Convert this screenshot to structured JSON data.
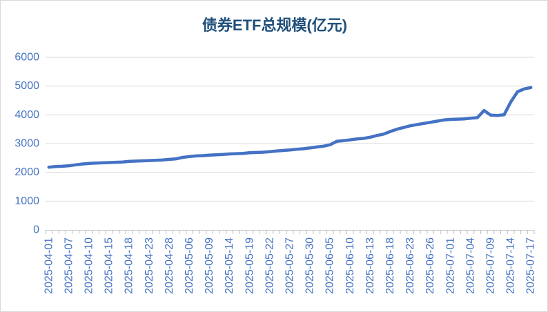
{
  "window": {
    "background": "#FFFFFF",
    "border_color": "#D9D9D9"
  },
  "chart_data": {
    "type": "line",
    "title": "债券ETF总规模(亿元)",
    "xlabel": "",
    "ylabel": "",
    "ylim": [
      0,
      6000
    ],
    "y_ticks": [
      0,
      1000,
      2000,
      3000,
      4000,
      5000,
      6000
    ],
    "grid": true,
    "legend": false,
    "x_label_every": 3,
    "x_tick_labels_shown": [
      "2025-04-01",
      "2025-04-07",
      "2025-04-10",
      "2025-04-15",
      "2025-04-18",
      "2025-04-23",
      "2025-04-28",
      "2025-05-06",
      "2025-05-09",
      "2025-05-14",
      "2025-05-19",
      "2025-05-22",
      "2025-05-27",
      "2025-05-30",
      "2025-06-05",
      "2025-06-10",
      "2025-06-13",
      "2025-06-18",
      "2025-06-23",
      "2025-06-26",
      "2025-07-01",
      "2025-07-04",
      "2025-07-09",
      "2025-07-14",
      "2025-07-17"
    ],
    "x": [
      "2025-04-01",
      "2025-04-02",
      "2025-04-03",
      "2025-04-07",
      "2025-04-08",
      "2025-04-09",
      "2025-04-10",
      "2025-04-11",
      "2025-04-14",
      "2025-04-15",
      "2025-04-16",
      "2025-04-17",
      "2025-04-18",
      "2025-04-21",
      "2025-04-22",
      "2025-04-23",
      "2025-04-24",
      "2025-04-25",
      "2025-04-28",
      "2025-04-29",
      "2025-04-30",
      "2025-05-06",
      "2025-05-07",
      "2025-05-08",
      "2025-05-09",
      "2025-05-12",
      "2025-05-13",
      "2025-05-14",
      "2025-05-15",
      "2025-05-16",
      "2025-05-19",
      "2025-05-20",
      "2025-05-21",
      "2025-05-22",
      "2025-05-23",
      "2025-05-26",
      "2025-05-27",
      "2025-05-28",
      "2025-05-29",
      "2025-05-30",
      "2025-06-03",
      "2025-06-04",
      "2025-06-05",
      "2025-06-06",
      "2025-06-09",
      "2025-06-10",
      "2025-06-11",
      "2025-06-12",
      "2025-06-13",
      "2025-06-16",
      "2025-06-17",
      "2025-06-18",
      "2025-06-19",
      "2025-06-20",
      "2025-06-23",
      "2025-06-24",
      "2025-06-25",
      "2025-06-26",
      "2025-06-27",
      "2025-06-30",
      "2025-07-01",
      "2025-07-02",
      "2025-07-03",
      "2025-07-04",
      "2025-07-07",
      "2025-07-08",
      "2025-07-09",
      "2025-07-10",
      "2025-07-11",
      "2025-07-14",
      "2025-07-15",
      "2025-07-16",
      "2025-07-17"
    ],
    "values": [
      2180,
      2200,
      2210,
      2230,
      2260,
      2290,
      2310,
      2320,
      2330,
      2340,
      2350,
      2360,
      2380,
      2390,
      2400,
      2410,
      2420,
      2430,
      2450,
      2470,
      2520,
      2550,
      2570,
      2580,
      2600,
      2610,
      2620,
      2640,
      2650,
      2660,
      2680,
      2690,
      2700,
      2720,
      2740,
      2760,
      2780,
      2800,
      2820,
      2850,
      2880,
      2910,
      2960,
      3080,
      3100,
      3130,
      3160,
      3180,
      3220,
      3280,
      3330,
      3420,
      3500,
      3560,
      3620,
      3660,
      3700,
      3740,
      3780,
      3820,
      3840,
      3850,
      3860,
      3880,
      3900,
      4150,
      3990,
      3980,
      4000,
      4450,
      4800,
      4900,
      4950
    ],
    "line_color": "#4472C4",
    "title_color": "#1F4E79",
    "axis_text_color": "#4472C4",
    "gridline_color": "#D9D9D9",
    "axis_line_color": "#BFBFBF"
  }
}
